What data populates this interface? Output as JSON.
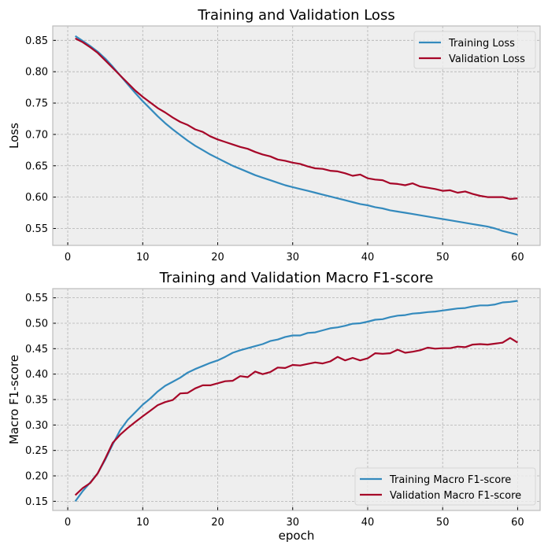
{
  "colors": {
    "training": "#348ABD",
    "validation": "#A60628",
    "background": "#EEEEEE",
    "grid": "#B2B2B2"
  },
  "chart_data": [
    {
      "type": "line",
      "title": "Training and Validation Loss",
      "xlabel": "",
      "ylabel": "Loss",
      "xlim": [
        -2,
        63
      ],
      "ylim": [
        0.523,
        0.873
      ],
      "xticks": [
        0,
        10,
        20,
        30,
        40,
        50,
        60
      ],
      "yticks": [
        0.55,
        0.6,
        0.65,
        0.7,
        0.75,
        0.8,
        0.85
      ],
      "ytick_labels": [
        "0.55",
        "0.60",
        "0.65",
        "0.70",
        "0.75",
        "0.80",
        "0.85"
      ],
      "grid": true,
      "legend": "top-right",
      "series": [
        {
          "name": "Training Loss",
          "color": "#348ABD",
          "values": [
            0.857,
            0.849,
            0.841,
            0.832,
            0.821,
            0.808,
            0.794,
            0.78,
            0.766,
            0.753,
            0.741,
            0.729,
            0.718,
            0.708,
            0.699,
            0.69,
            0.682,
            0.675,
            0.668,
            0.662,
            0.656,
            0.65,
            0.645,
            0.64,
            0.635,
            0.631,
            0.627,
            0.623,
            0.619,
            0.616,
            0.613,
            0.61,
            0.607,
            0.604,
            0.601,
            0.598,
            0.595,
            0.592,
            0.589,
            0.587,
            0.584,
            0.582,
            0.579,
            0.577,
            0.575,
            0.573,
            0.571,
            0.569,
            0.567,
            0.565,
            0.563,
            0.561,
            0.559,
            0.557,
            0.555,
            0.553,
            0.55,
            0.546,
            0.543,
            0.54
          ]
        },
        {
          "name": "Validation Loss",
          "color": "#A60628",
          "values": [
            0.853,
            0.847,
            0.839,
            0.83,
            0.818,
            0.806,
            0.794,
            0.782,
            0.77,
            0.76,
            0.751,
            0.742,
            0.735,
            0.727,
            0.72,
            0.715,
            0.708,
            0.704,
            0.697,
            0.692,
            0.688,
            0.684,
            0.68,
            0.677,
            0.672,
            0.668,
            0.665,
            0.66,
            0.658,
            0.655,
            0.653,
            0.649,
            0.646,
            0.645,
            0.642,
            0.641,
            0.638,
            0.634,
            0.636,
            0.63,
            0.628,
            0.627,
            0.622,
            0.621,
            0.619,
            0.622,
            0.617,
            0.615,
            0.613,
            0.61,
            0.611,
            0.607,
            0.609,
            0.605,
            0.602,
            0.6,
            0.6,
            0.6,
            0.597,
            0.598
          ]
        }
      ]
    },
    {
      "type": "line",
      "title": "Training and Validation Macro F1-score",
      "xlabel": "epoch",
      "ylabel": "Macro F1-score",
      "xlim": [
        -2,
        63
      ],
      "ylim": [
        0.132,
        0.568
      ],
      "xticks": [
        0,
        10,
        20,
        30,
        40,
        50,
        60
      ],
      "yticks": [
        0.15,
        0.2,
        0.25,
        0.3,
        0.35,
        0.4,
        0.45,
        0.5,
        0.55
      ],
      "ytick_labels": [
        "0.15",
        "0.20",
        "0.25",
        "0.30",
        "0.35",
        "0.40",
        "0.45",
        "0.50",
        "0.55"
      ],
      "grid": true,
      "legend": "bottom-right",
      "series": [
        {
          "name": "Training Macro F1-score",
          "color": "#348ABD",
          "values": [
            0.15,
            0.17,
            0.187,
            0.205,
            0.232,
            0.262,
            0.29,
            0.31,
            0.325,
            0.34,
            0.352,
            0.366,
            0.377,
            0.385,
            0.393,
            0.403,
            0.41,
            0.416,
            0.422,
            0.427,
            0.434,
            0.442,
            0.447,
            0.451,
            0.455,
            0.459,
            0.465,
            0.468,
            0.473,
            0.476,
            0.476,
            0.481,
            0.482,
            0.486,
            0.49,
            0.492,
            0.495,
            0.499,
            0.5,
            0.503,
            0.507,
            0.508,
            0.512,
            0.515,
            0.516,
            0.519,
            0.52,
            0.522,
            0.523,
            0.525,
            0.527,
            0.529,
            0.53,
            0.533,
            0.535,
            0.535,
            0.537,
            0.541,
            0.542,
            0.544
          ]
        },
        {
          "name": "Validation Macro F1-score",
          "color": "#A60628",
          "values": [
            0.162,
            0.176,
            0.186,
            0.205,
            0.234,
            0.265,
            0.281,
            0.294,
            0.306,
            0.317,
            0.328,
            0.339,
            0.345,
            0.349,
            0.362,
            0.363,
            0.372,
            0.378,
            0.378,
            0.382,
            0.386,
            0.387,
            0.396,
            0.394,
            0.405,
            0.4,
            0.404,
            0.413,
            0.412,
            0.418,
            0.417,
            0.42,
            0.423,
            0.421,
            0.425,
            0.434,
            0.427,
            0.432,
            0.427,
            0.431,
            0.441,
            0.44,
            0.441,
            0.448,
            0.442,
            0.444,
            0.447,
            0.452,
            0.45,
            0.451,
            0.451,
            0.454,
            0.453,
            0.458,
            0.459,
            0.458,
            0.46,
            0.462,
            0.471,
            0.462
          ]
        }
      ]
    }
  ]
}
